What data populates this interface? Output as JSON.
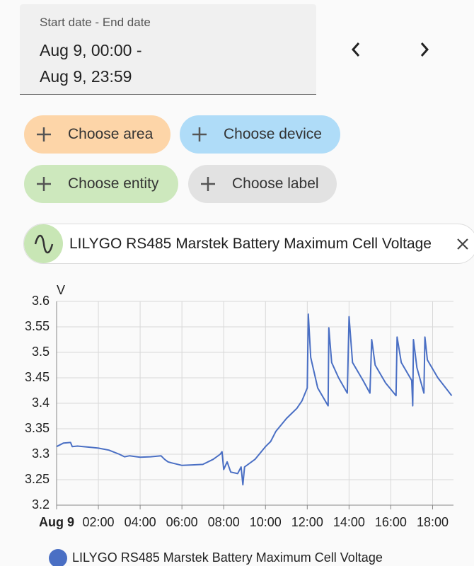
{
  "date_picker": {
    "label": "Start date - End date",
    "start": "Aug 9, 00:00 -",
    "end": "Aug 9, 23:59"
  },
  "chips": [
    "Choose area",
    "Choose device",
    "Choose entity",
    "Choose label"
  ],
  "entity": "LILYGO RS485 Marstek Battery Maximum Cell Voltage",
  "chart_data": {
    "type": "line",
    "y_label": "V",
    "x": [
      "00:00",
      "00:20",
      "00:40",
      "00:45",
      "01:00",
      "01:30",
      "02:00",
      "02:30",
      "03:00",
      "03:15",
      "03:30",
      "04:00",
      "04:30",
      "05:00",
      "05:10",
      "05:20",
      "05:30",
      "06:00",
      "06:30",
      "07:00",
      "07:30",
      "07:50",
      "07:55",
      "08:00",
      "08:10",
      "08:20",
      "08:40",
      "08:50",
      "08:55",
      "09:00",
      "09:30",
      "10:00",
      "10:15",
      "10:30",
      "11:00",
      "11:15",
      "11:30",
      "11:45",
      "12:00",
      "12:03",
      "12:10",
      "12:30",
      "13:00",
      "13:02",
      "13:10",
      "13:30",
      "13:55",
      "14:00",
      "14:10",
      "14:40",
      "15:00",
      "15:05",
      "15:15",
      "15:45",
      "16:15",
      "16:18",
      "16:30",
      "17:00",
      "17:03",
      "17:05",
      "17:15",
      "17:35",
      "17:38",
      "17:45",
      "18:15",
      "18:55"
    ],
    "series": [
      {
        "name": "LILYGO RS485 Marstek Battery Maximum Cell Voltage",
        "color": "#4a6fc4",
        "values": [
          3.315,
          3.322,
          3.323,
          3.315,
          3.316,
          3.314,
          3.312,
          3.308,
          3.3,
          3.295,
          3.297,
          3.294,
          3.295,
          3.297,
          3.29,
          3.285,
          3.283,
          3.278,
          3.279,
          3.28,
          3.29,
          3.3,
          3.305,
          3.27,
          3.285,
          3.265,
          3.262,
          3.275,
          3.24,
          3.275,
          3.29,
          3.315,
          3.325,
          3.345,
          3.37,
          3.38,
          3.39,
          3.405,
          3.43,
          3.575,
          3.49,
          3.43,
          3.395,
          3.548,
          3.48,
          3.45,
          3.42,
          3.57,
          3.48,
          3.445,
          3.42,
          3.525,
          3.475,
          3.44,
          3.415,
          3.53,
          3.48,
          3.445,
          3.395,
          3.525,
          3.47,
          3.42,
          3.53,
          3.485,
          3.45,
          3.415
        ]
      }
    ],
    "xlim": [
      "00:00",
      "19:00"
    ],
    "xticks": [
      {
        "value": "00:00",
        "label": "Aug 9"
      },
      "02:00",
      "04:00",
      "06:00",
      "08:00",
      "10:00",
      "12:00",
      "14:00",
      "16:00",
      "18:00"
    ],
    "ylim": [
      3.2,
      3.6
    ],
    "yticks": [
      3.2,
      3.25,
      3.3,
      3.35,
      3.4,
      3.45,
      3.5,
      3.55,
      3.6
    ],
    "grid": true
  }
}
